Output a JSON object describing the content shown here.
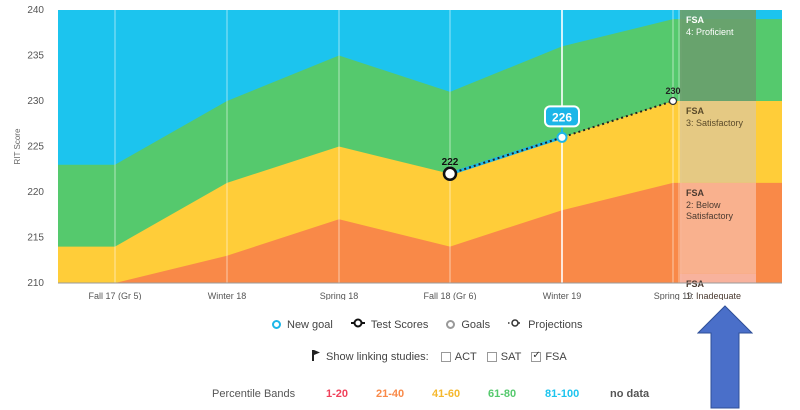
{
  "chart_data": {
    "type": "area",
    "y_axis_label": "RIT Score",
    "ylim": [
      210,
      240
    ],
    "y_ticks": [
      210,
      215,
      220,
      225,
      230,
      235,
      240
    ],
    "categories": [
      "Fall 17 (Gr 5)",
      "Winter 18",
      "Spring 18",
      "Fall 18 (Gr 6)",
      "Winter 19",
      "Spring 19"
    ],
    "bands": [
      {
        "label": "1-20",
        "color": "#f0405a",
        "upper": [
          204,
          205,
          206,
          206,
          207,
          208
        ]
      },
      {
        "label": "21-40",
        "color": "#f98948",
        "upper": [
          208,
          213,
          217,
          214,
          218,
          221
        ]
      },
      {
        "label": "41-60",
        "color": "#ffcd39",
        "upper": [
          214,
          221,
          225,
          222,
          226,
          230
        ]
      },
      {
        "label": "61-80",
        "color": "#55c96d",
        "upper": [
          223,
          230,
          235,
          231,
          236,
          239
        ]
      },
      {
        "label": "81-100",
        "color": "#1cc4ee",
        "upper": [
          245,
          245,
          245,
          245,
          245,
          245
        ]
      }
    ],
    "series": [
      {
        "name": "Test Scores",
        "points": [
          {
            "x": "Fall 18 (Gr 6)",
            "y": 222,
            "label": "222"
          }
        ]
      },
      {
        "name": "New goal",
        "points": [
          {
            "x": "Winter 19",
            "y": 226,
            "label": "226"
          }
        ]
      },
      {
        "name": "Projections",
        "points": [
          {
            "x": "Fall 18 (Gr 6)",
            "y": 222
          },
          {
            "x": "Winter 19",
            "y": 226
          },
          {
            "x": "Spring 19",
            "y": 230,
            "label": "230"
          }
        ]
      }
    ],
    "fsa_levels": [
      {
        "title": "FSA",
        "text": "4: Proficient",
        "upper": 240,
        "lower": 230,
        "color": "#6aa06e",
        "text_color": "#ffffff"
      },
      {
        "title": "FSA",
        "text": "3: Satisfactory",
        "upper": 230,
        "lower": 221,
        "color": "#e3c98a",
        "text_color": "#5a4a2a"
      },
      {
        "title": "FSA",
        "text": "2: Below Satisfactory",
        "upper": 221,
        "lower": 211,
        "color": "#f8b495",
        "text_color": "#4a3a30"
      },
      {
        "title": "FSA",
        "text": "1: Inadequate",
        "upper": 211,
        "lower": 200,
        "color": "#f7b5a5",
        "text_color": "#4a3a30"
      }
    ]
  },
  "legend": {
    "new_goal": "New goal",
    "test_scores": "Test Scores",
    "goals": "Goals",
    "projections": "Projections",
    "linking_label": "Show linking studies:",
    "act": "ACT",
    "sat": "SAT",
    "fsa": "FSA",
    "act_checked": false,
    "sat_checked": false,
    "fsa_checked": true
  },
  "percentile_bands": {
    "title": "Percentile Bands",
    "items": [
      {
        "label": "1-20",
        "color": "#f0405a"
      },
      {
        "label": "21-40",
        "color": "#f98948"
      },
      {
        "label": "41-60",
        "color": "#f5b82e"
      },
      {
        "label": "61-80",
        "color": "#55c96d"
      },
      {
        "label": "81-100",
        "color": "#1cc4ee"
      },
      {
        "label": "no data",
        "color": "#555555"
      }
    ]
  },
  "arrow_color": "#4a6fc9"
}
